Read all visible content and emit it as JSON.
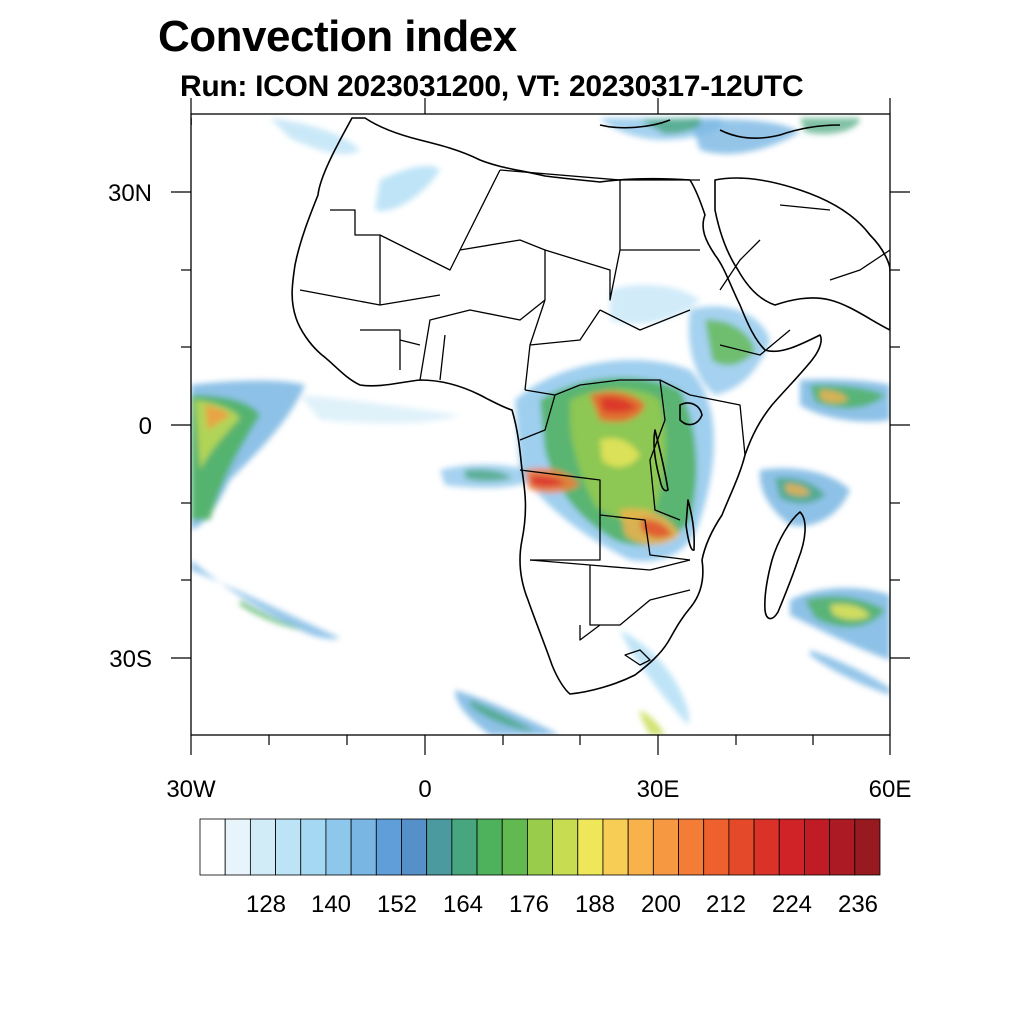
{
  "title": "Convection index",
  "subtitle": "Run: ICON 2023031200,  VT: 20230317-12UTC",
  "map": {
    "lon_range": [
      -30,
      60
    ],
    "lat_range": [
      -40,
      40
    ],
    "x_tick_labels": [
      "30W",
      "0",
      "30E",
      "60E"
    ],
    "y_tick_labels": [
      "30N",
      "0",
      "30S"
    ]
  },
  "colorbar": {
    "labels": [
      "128",
      "140",
      "152",
      "164",
      "176",
      "188",
      "200",
      "212",
      "224",
      "236"
    ],
    "colors": [
      "#ffffff",
      "#e8f4fb",
      "#d1ebf7",
      "#bde3f6",
      "#a4d8f3",
      "#8ec7ec",
      "#79b6e3",
      "#609ed9",
      "#5590c8",
      "#4a9aa0",
      "#48a67e",
      "#4eb25c",
      "#62b94f",
      "#9acc4c",
      "#c8dc52",
      "#efe75a",
      "#f8cd55",
      "#f8b14b",
      "#f69841",
      "#f37d36",
      "#ee612e",
      "#e44a2a",
      "#da3128",
      "#cf2328",
      "#bf1c26",
      "#ac1a24",
      "#961a20"
    ]
  }
}
